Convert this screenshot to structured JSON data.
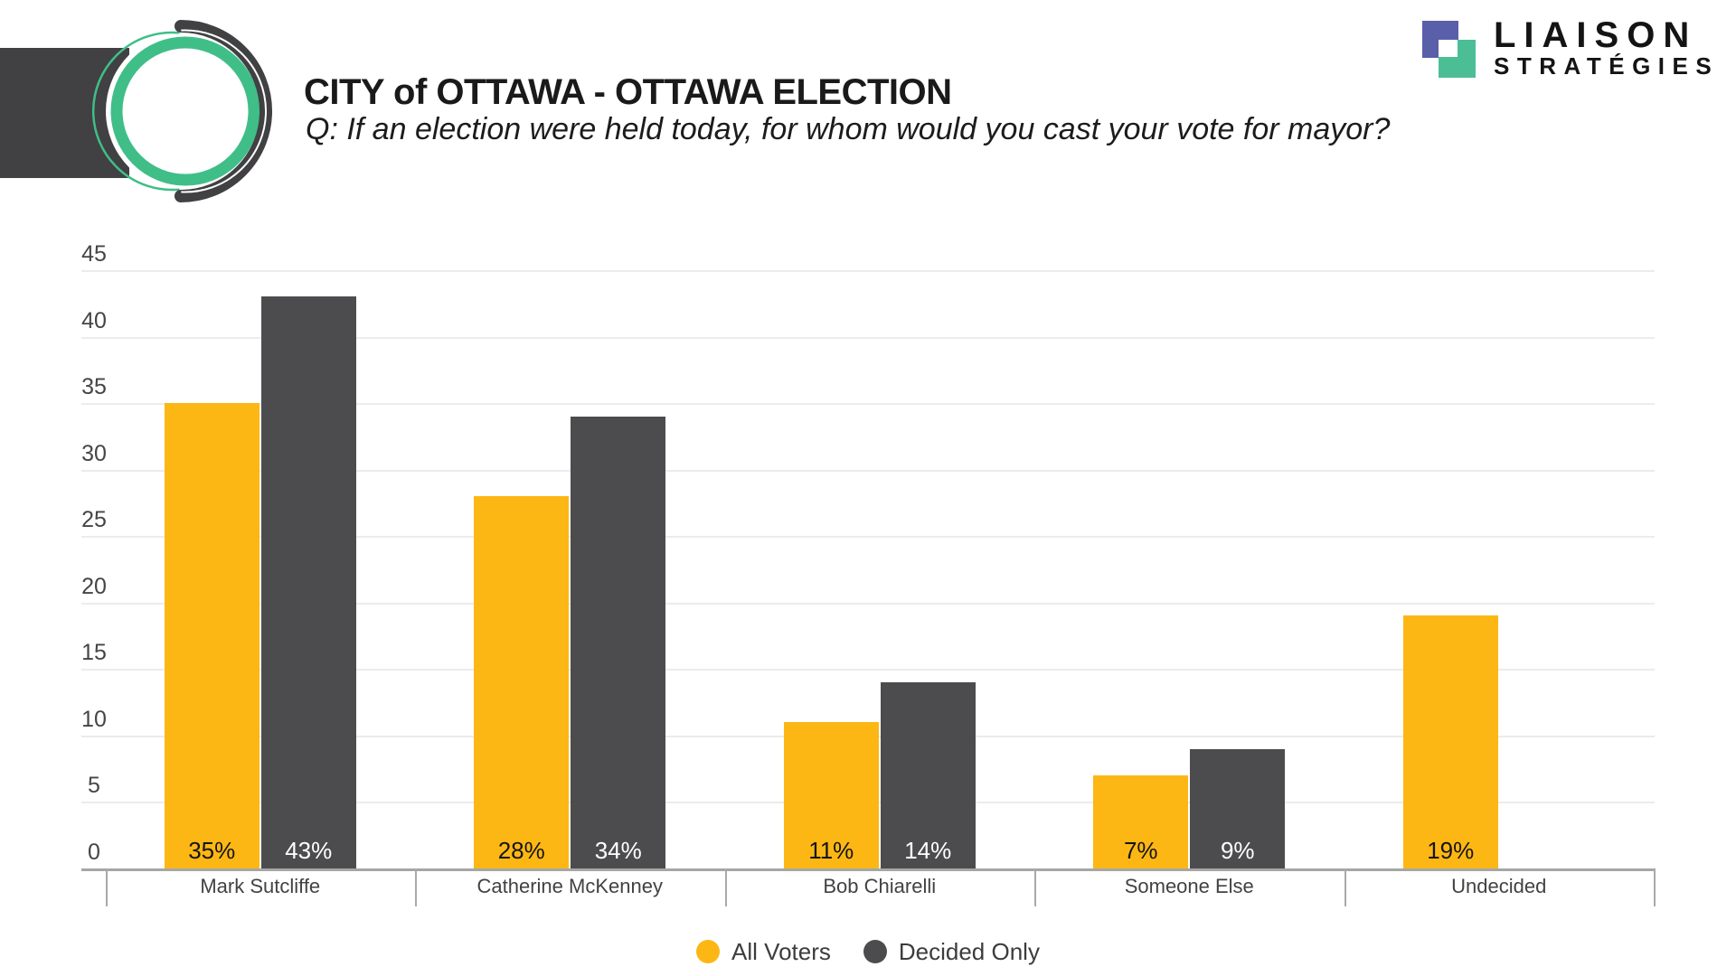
{
  "header": {
    "title": "CITY of OTTAWA - OTTAWA ELECTION",
    "subtitle": "Q: If an election were held today, for whom would you cast your vote for mayor?"
  },
  "brand": {
    "line1": "LIAISON",
    "line2": "STRATÉGIES",
    "square_blue": "#5A5FA9",
    "square_green": "#4CBE96"
  },
  "corner_logo": {
    "bar_color": "#414042",
    "ring_color": "#40BE88"
  },
  "chart_data": {
    "type": "bar",
    "title": "CITY of OTTAWA - OTTAWA ELECTION",
    "subtitle": "Q: If an election were held today, for whom would you cast your vote for mayor?",
    "categories": [
      "Mark Sutcliffe",
      "Catherine McKenney",
      "Bob Chiarelli",
      "Someone Else",
      "Undecided"
    ],
    "series": [
      {
        "name": "All Voters",
        "color": "#FDB714",
        "label_color": "#151515",
        "values": [
          35,
          28,
          11,
          7,
          19
        ]
      },
      {
        "name": "Decided Only",
        "color": "#4C4C4E",
        "label_color": "#FFFFFF",
        "values": [
          43,
          34,
          14,
          9,
          null
        ]
      }
    ],
    "value_suffix": "%",
    "xlabel": "",
    "ylabel": "",
    "ylim": [
      0,
      45
    ],
    "yticks": [
      45,
      40,
      35,
      30,
      25,
      20,
      15,
      10,
      5,
      0
    ],
    "grid": true,
    "legend_position": "bottom"
  }
}
